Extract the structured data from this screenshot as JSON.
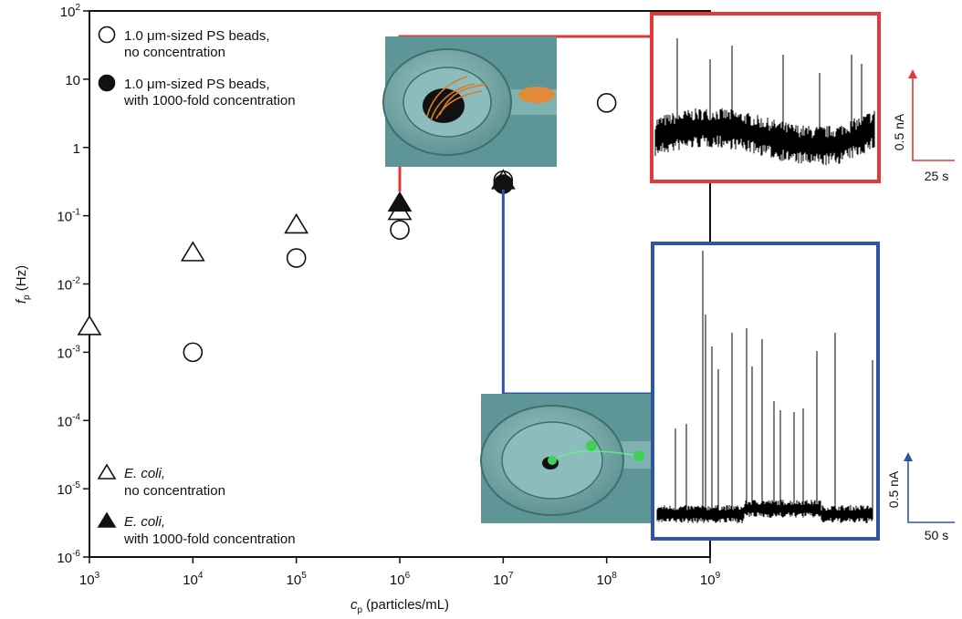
{
  "chart_data": {
    "type": "scatter",
    "xscale": "log",
    "yscale": "log",
    "xlim": [
      1000,
      1000000000
    ],
    "ylim": [
      1e-06,
      100
    ],
    "x_ticks": [
      {
        "value": 1000,
        "base": "10",
        "exp": "3"
      },
      {
        "value": 10000,
        "base": "10",
        "exp": "4"
      },
      {
        "value": 100000,
        "base": "10",
        "exp": "5"
      },
      {
        "value": 1000000,
        "base": "10",
        "exp": "6"
      },
      {
        "value": 10000000,
        "base": "10",
        "exp": "7"
      },
      {
        "value": 100000000,
        "base": "10",
        "exp": "8"
      },
      {
        "value": 1000000000,
        "base": "10",
        "exp": "9"
      }
    ],
    "y_ticks": [
      {
        "value": 100,
        "base": "10",
        "exp": "2"
      },
      {
        "value": 10,
        "base": "10",
        "exp": ""
      },
      {
        "value": 1,
        "base": "1",
        "exp": ""
      },
      {
        "value": 0.1,
        "base": "10",
        "exp": "-1"
      },
      {
        "value": 0.01,
        "base": "10",
        "exp": "-2"
      },
      {
        "value": 0.001,
        "base": "10",
        "exp": "-3"
      },
      {
        "value": 0.0001,
        "base": "10",
        "exp": "-4"
      },
      {
        "value": 1e-05,
        "base": "10",
        "exp": "-5"
      },
      {
        "value": 1e-06,
        "base": "10",
        "exp": "-6"
      }
    ],
    "xlabel": {
      "sym": "c",
      "sub": "p",
      "rest": " (particles/mL)"
    },
    "ylabel": {
      "sym": "f",
      "sub": "p",
      "rest": " (Hz)"
    },
    "series": [
      {
        "marker": "open-circle",
        "label_lines": [
          "1.0 μm-sized PS beads,",
          "no concentration"
        ],
        "points": [
          {
            "x": 10000,
            "y": 0.001
          },
          {
            "x": 100000,
            "y": 0.024
          },
          {
            "x": 1000000,
            "y": 0.062
          },
          {
            "x": 10000000,
            "y": 0.33
          },
          {
            "x": 100000000,
            "y": 4.5
          }
        ]
      },
      {
        "marker": "filled-circle",
        "label_lines": [
          "1.0 μm-sized PS beads,",
          "with 1000-fold concentration"
        ],
        "points": [
          {
            "x": 10000000,
            "y": 0.29
          }
        ]
      },
      {
        "marker": "open-triangle",
        "label_lines": [
          "E. coli,",
          "no concentration"
        ],
        "points": [
          {
            "x": 1000,
            "y": 0.0024
          },
          {
            "x": 10000,
            "y": 0.029
          },
          {
            "x": 100000,
            "y": 0.074
          },
          {
            "x": 1000000,
            "y": 0.117
          },
          {
            "x": 10000000,
            "y": 0.33
          }
        ]
      },
      {
        "marker": "filled-triangle",
        "label_lines": [
          "E. coli,",
          "with 1000-fold concentration"
        ],
        "points": [
          {
            "x": 1000000,
            "y": 0.155
          }
        ]
      }
    ],
    "insets": [
      {
        "name": "red-trace",
        "color": "#e03a3a",
        "scale_current": "0.5 nA",
        "scale_time": "25 s",
        "linked_point": {
          "x": 1000000,
          "y": 0.155
        }
      },
      {
        "name": "blue-trace",
        "color": "#2f55a4",
        "scale_current": "0.5 nA",
        "scale_time": "50 s",
        "linked_point": {
          "x": 10000000,
          "y": 0.29
        }
      }
    ]
  }
}
